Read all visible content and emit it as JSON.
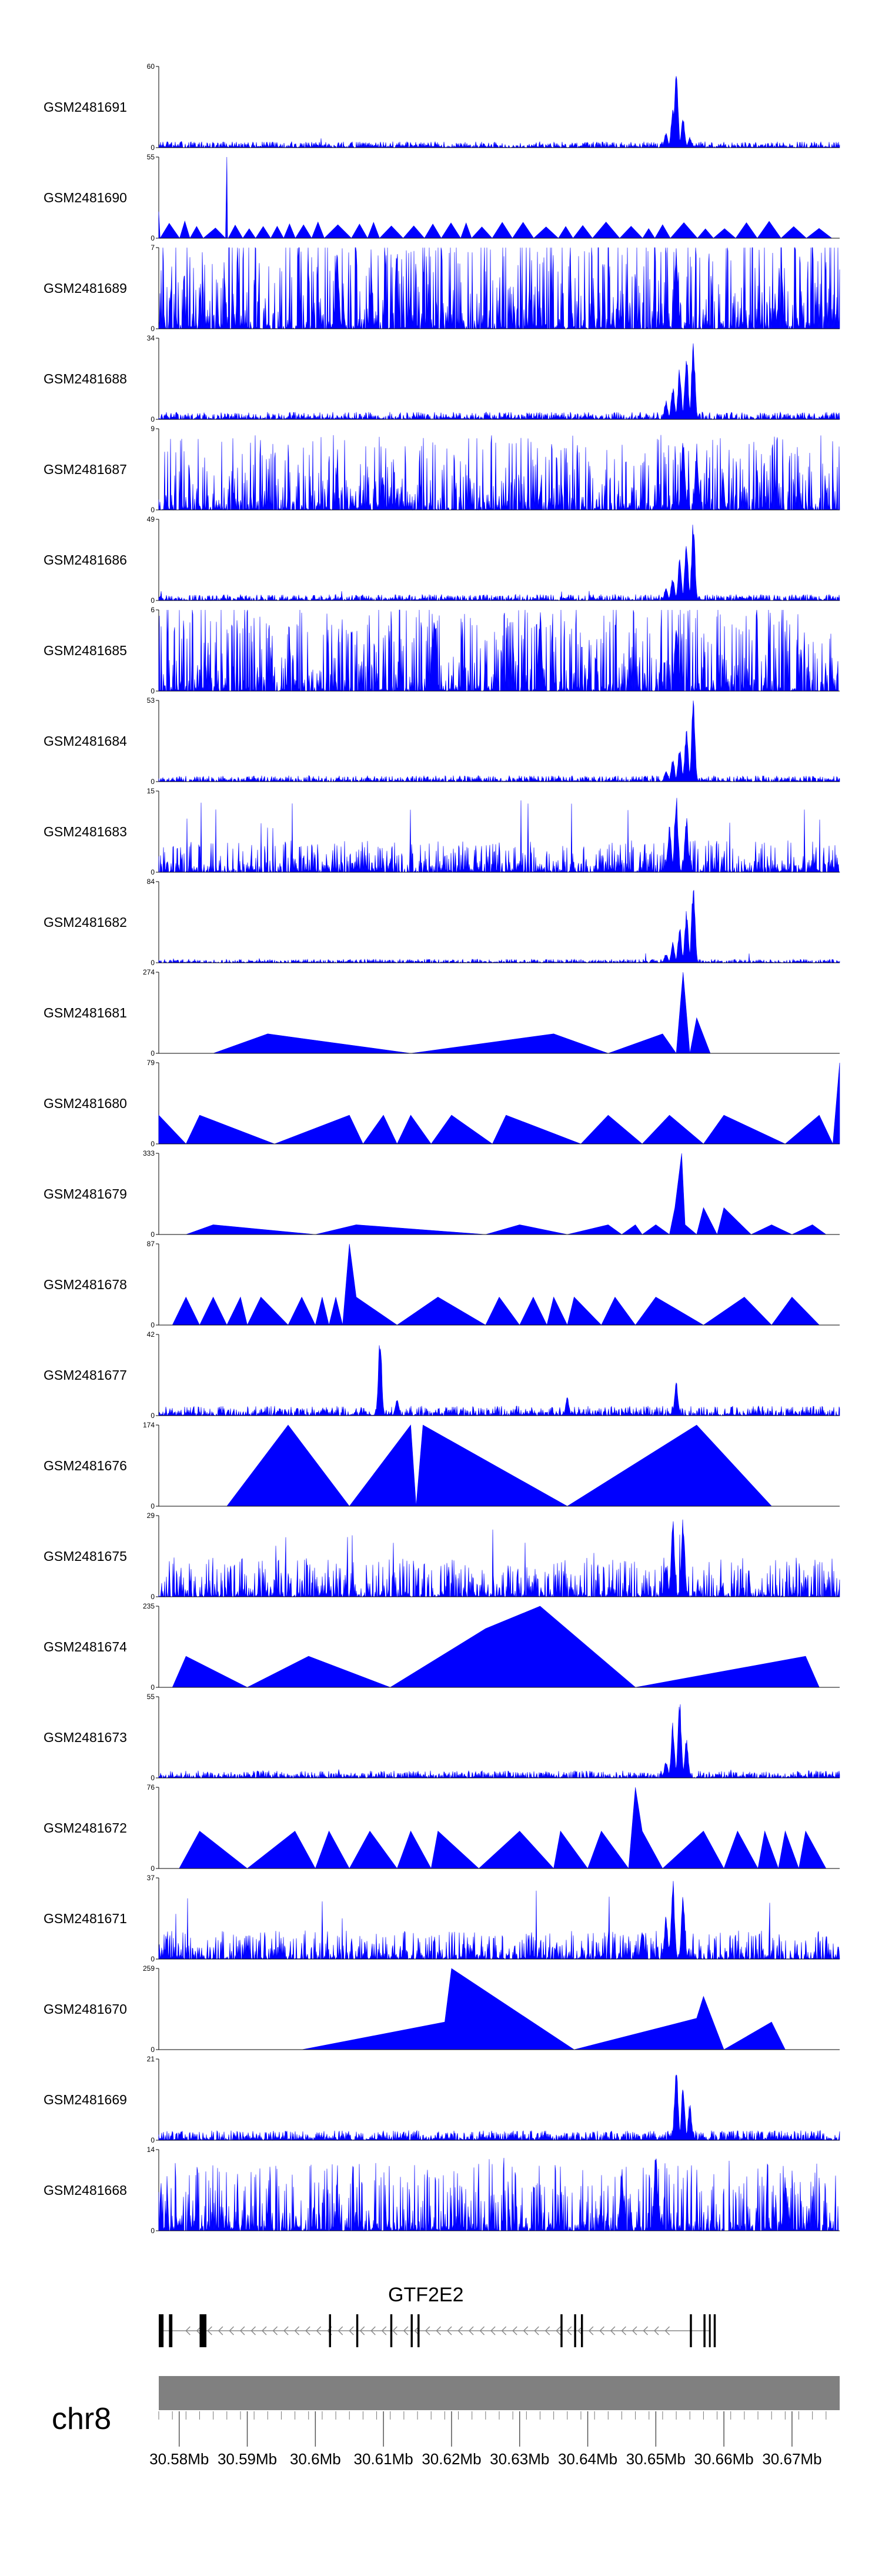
{
  "chart_data": {
    "type": "area",
    "genome": {
      "chromosome": "chr8",
      "gene": "GTF2E2",
      "x_range": [
        30.577,
        30.677
      ],
      "x_ticks": [
        30.58,
        30.59,
        30.6,
        30.61,
        30.62,
        30.63,
        30.64,
        30.65,
        30.66,
        30.67
      ],
      "x_tick_labels": [
        "30.58Mb",
        "30.59Mb",
        "30.6Mb",
        "30.61Mb",
        "30.62Mb",
        "30.63Mb",
        "30.64Mb",
        "30.65Mb",
        "30.66Mb",
        "30.67Mb"
      ]
    },
    "color": "#0000ff",
    "tracks": [
      {
        "name": "GSM2481691",
        "ymax": 60,
        "style": "dense",
        "noise": 0.05,
        "peaks": [
          [
            30.653,
            60
          ],
          [
            30.6525,
            32
          ],
          [
            30.654,
            22
          ],
          [
            30.6515,
            12
          ],
          [
            30.655,
            8
          ]
        ]
      },
      {
        "name": "GSM2481690",
        "ymax": 55,
        "style": "tri",
        "seg_min": 0.0015,
        "seg_max": 0.004,
        "level": 9,
        "peaks": [
          [
            30.577,
            18
          ],
          [
            30.587,
            55
          ]
        ]
      },
      {
        "name": "GSM2481689",
        "ymax": 7,
        "style": "spiky",
        "noise": 0.55,
        "peaks": [
          [
            30.6032,
            7
          ],
          [
            30.653,
            7
          ]
        ]
      },
      {
        "name": "GSM2481688",
        "ymax": 34,
        "style": "dense",
        "noise": 0.06,
        "peaks": [
          [
            30.6555,
            34
          ],
          [
            30.6545,
            28
          ],
          [
            30.6535,
            22
          ],
          [
            30.6525,
            14
          ],
          [
            30.6515,
            8
          ]
        ]
      },
      {
        "name": "GSM2481687",
        "ymax": 9,
        "style": "spiky",
        "noise": 0.42,
        "peaks": [
          [
            30.654,
            9
          ],
          [
            30.656,
            7
          ]
        ]
      },
      {
        "name": "GSM2481686",
        "ymax": 49,
        "style": "dense",
        "noise": 0.05,
        "peaks": [
          [
            30.6555,
            49
          ],
          [
            30.6545,
            35
          ],
          [
            30.6535,
            25
          ],
          [
            30.6525,
            15
          ],
          [
            30.6515,
            8
          ]
        ]
      },
      {
        "name": "GSM2481685",
        "ymax": 6,
        "style": "spiky",
        "noise": 0.5,
        "peaks": [
          [
            30.6175,
            6
          ],
          [
            30.633,
            6
          ],
          [
            30.653,
            5
          ]
        ]
      },
      {
        "name": "GSM2481684",
        "ymax": 53,
        "style": "dense",
        "noise": 0.05,
        "peaks": [
          [
            30.6555,
            53
          ],
          [
            30.6545,
            35
          ],
          [
            30.6535,
            24
          ],
          [
            30.6525,
            16
          ],
          [
            30.6515,
            8
          ]
        ]
      },
      {
        "name": "GSM2481683",
        "ymax": 15,
        "style": "spiky",
        "noise": 0.18,
        "peaks": [
          [
            30.653,
            15
          ],
          [
            30.6545,
            11
          ],
          [
            30.652,
            9
          ]
        ]
      },
      {
        "name": "GSM2481682",
        "ymax": 84,
        "style": "dense",
        "noise": 0.03,
        "peaks": [
          [
            30.6555,
            84
          ],
          [
            30.6545,
            55
          ],
          [
            30.6535,
            38
          ],
          [
            30.6525,
            22
          ],
          [
            30.6515,
            10
          ]
        ]
      },
      {
        "name": "GSM2481681",
        "ymax": 274,
        "style": "poly",
        "points": [
          [
            30.585,
            0
          ],
          [
            30.593,
            66
          ],
          [
            30.614,
            0
          ],
          [
            30.635,
            66
          ],
          [
            30.643,
            0
          ],
          [
            30.651,
            66
          ],
          [
            30.653,
            0
          ],
          [
            30.654,
            274
          ],
          [
            30.655,
            0
          ],
          [
            30.656,
            120
          ],
          [
            30.658,
            0
          ],
          [
            30.667,
            0
          ]
        ]
      },
      {
        "name": "GSM2481680",
        "ymax": 79,
        "style": "poly",
        "points": [
          [
            30.577,
            0
          ],
          [
            30.577,
            28
          ],
          [
            30.581,
            0
          ],
          [
            30.583,
            28
          ],
          [
            30.594,
            0
          ],
          [
            30.605,
            28
          ],
          [
            30.607,
            0
          ],
          [
            30.61,
            28
          ],
          [
            30.612,
            0
          ],
          [
            30.614,
            28
          ],
          [
            30.617,
            0
          ],
          [
            30.62,
            28
          ],
          [
            30.626,
            0
          ],
          [
            30.628,
            28
          ],
          [
            30.639,
            0
          ],
          [
            30.643,
            28
          ],
          [
            30.648,
            0
          ],
          [
            30.652,
            28
          ],
          [
            30.657,
            0
          ],
          [
            30.66,
            28
          ],
          [
            30.669,
            0
          ],
          [
            30.674,
            28
          ],
          [
            30.676,
            0
          ],
          [
            30.677,
            79
          ],
          [
            30.677,
            0
          ]
        ]
      },
      {
        "name": "GSM2481679",
        "ymax": 333,
        "style": "poly",
        "points": [
          [
            30.581,
            0
          ],
          [
            30.585,
            40
          ],
          [
            30.6,
            0
          ],
          [
            30.606,
            40
          ],
          [
            30.625,
            0
          ],
          [
            30.63,
            40
          ],
          [
            30.637,
            0
          ],
          [
            30.643,
            40
          ],
          [
            30.645,
            0
          ],
          [
            30.647,
            40
          ],
          [
            30.648,
            0
          ],
          [
            30.65,
            40
          ],
          [
            30.652,
            0
          ],
          [
            30.6528,
            110
          ],
          [
            30.6538,
            333
          ],
          [
            30.6543,
            40
          ],
          [
            30.656,
            0
          ],
          [
            30.657,
            110
          ],
          [
            30.659,
            0
          ],
          [
            30.66,
            110
          ],
          [
            30.664,
            0
          ],
          [
            30.667,
            40
          ],
          [
            30.67,
            0
          ],
          [
            30.673,
            40
          ],
          [
            30.675,
            0
          ]
        ]
      },
      {
        "name": "GSM2481678",
        "ymax": 87,
        "style": "poly",
        "points": [
          [
            30.579,
            0
          ],
          [
            30.581,
            30
          ],
          [
            30.583,
            0
          ],
          [
            30.585,
            30
          ],
          [
            30.587,
            0
          ],
          [
            30.589,
            30
          ],
          [
            30.59,
            0
          ],
          [
            30.592,
            30
          ],
          [
            30.596,
            0
          ],
          [
            30.598,
            30
          ],
          [
            30.6,
            0
          ],
          [
            30.601,
            30
          ],
          [
            30.602,
            0
          ],
          [
            30.603,
            30
          ],
          [
            30.604,
            0
          ],
          [
            30.605,
            87
          ],
          [
            30.606,
            30
          ],
          [
            30.612,
            0
          ],
          [
            30.618,
            30
          ],
          [
            30.625,
            0
          ],
          [
            30.627,
            30
          ],
          [
            30.63,
            0
          ],
          [
            30.632,
            30
          ],
          [
            30.634,
            0
          ],
          [
            30.635,
            30
          ],
          [
            30.637,
            0
          ],
          [
            30.638,
            30
          ],
          [
            30.642,
            0
          ],
          [
            30.644,
            30
          ],
          [
            30.647,
            0
          ],
          [
            30.65,
            30
          ],
          [
            30.657,
            0
          ],
          [
            30.663,
            30
          ],
          [
            30.667,
            0
          ],
          [
            30.67,
            30
          ],
          [
            30.674,
            0
          ]
        ]
      },
      {
        "name": "GSM2481677",
        "ymax": 42,
        "style": "dense",
        "noise": 0.08,
        "peaks": [
          [
            30.6095,
            42
          ],
          [
            30.612,
            10
          ],
          [
            30.637,
            10
          ],
          [
            30.653,
            18
          ]
        ]
      },
      {
        "name": "GSM2481676",
        "ymax": 174,
        "style": "poly",
        "points": [
          [
            30.587,
            0
          ],
          [
            30.596,
            174
          ],
          [
            30.605,
            0
          ],
          [
            30.614,
            174
          ],
          [
            30.6148,
            0
          ],
          [
            30.6158,
            174
          ],
          [
            30.637,
            0
          ],
          [
            30.656,
            174
          ],
          [
            30.667,
            0
          ]
        ]
      },
      {
        "name": "GSM2481675",
        "ymax": 29,
        "style": "spiky",
        "noise": 0.22,
        "peaks": [
          [
            30.6525,
            29
          ],
          [
            30.654,
            29
          ],
          [
            30.6515,
            12
          ]
        ]
      },
      {
        "name": "GSM2481674",
        "ymax": 235,
        "style": "poly",
        "points": [
          [
            30.579,
            0
          ],
          [
            30.581,
            90
          ],
          [
            30.59,
            0
          ],
          [
            30.599,
            90
          ],
          [
            30.611,
            0
          ],
          [
            30.625,
            170
          ],
          [
            30.633,
            235
          ],
          [
            30.647,
            0
          ],
          [
            30.672,
            90
          ],
          [
            30.674,
            0
          ]
        ]
      },
      {
        "name": "GSM2481673",
        "ymax": 55,
        "style": "dense",
        "noise": 0.06,
        "peaks": [
          [
            30.6535,
            55
          ],
          [
            30.6525,
            38
          ],
          [
            30.6545,
            28
          ],
          [
            30.6515,
            12
          ]
        ]
      },
      {
        "name": "GSM2481672",
        "ymax": 76,
        "style": "poly",
        "points": [
          [
            30.58,
            0
          ],
          [
            30.583,
            35
          ],
          [
            30.59,
            0
          ],
          [
            30.597,
            35
          ],
          [
            30.6,
            0
          ],
          [
            30.602,
            35
          ],
          [
            30.605,
            0
          ],
          [
            30.608,
            35
          ],
          [
            30.612,
            0
          ],
          [
            30.614,
            35
          ],
          [
            30.617,
            0
          ],
          [
            30.618,
            35
          ],
          [
            30.624,
            0
          ],
          [
            30.63,
            35
          ],
          [
            30.635,
            0
          ],
          [
            30.636,
            35
          ],
          [
            30.64,
            0
          ],
          [
            30.642,
            35
          ],
          [
            30.646,
            0
          ],
          [
            30.647,
            76
          ],
          [
            30.648,
            35
          ],
          [
            30.651,
            0
          ],
          [
            30.657,
            35
          ],
          [
            30.66,
            0
          ],
          [
            30.662,
            35
          ],
          [
            30.665,
            0
          ],
          [
            30.666,
            35
          ],
          [
            30.668,
            0
          ],
          [
            30.669,
            35
          ],
          [
            30.671,
            0
          ],
          [
            30.672,
            35
          ],
          [
            30.675,
            0
          ]
        ]
      },
      {
        "name": "GSM2481671",
        "ymax": 37,
        "style": "spiky",
        "noise": 0.16,
        "peaks": [
          [
            30.6525,
            37
          ],
          [
            30.654,
            30
          ],
          [
            30.6515,
            20
          ],
          [
            30.648,
            14
          ]
        ]
      },
      {
        "name": "GSM2481670",
        "ymax": 259,
        "style": "poly",
        "points": [
          [
            30.598,
            0
          ],
          [
            30.619,
            88
          ],
          [
            30.62,
            259
          ],
          [
            30.638,
            0
          ],
          [
            30.656,
            100
          ],
          [
            30.657,
            170
          ],
          [
            30.66,
            0
          ],
          [
            30.667,
            88
          ],
          [
            30.669,
            0
          ]
        ]
      },
      {
        "name": "GSM2481669",
        "ymax": 21,
        "style": "dense",
        "noise": 0.08,
        "peaks": [
          [
            30.653,
            21
          ],
          [
            30.654,
            14
          ],
          [
            30.655,
            10
          ]
        ]
      },
      {
        "name": "GSM2481668",
        "ymax": 14,
        "style": "spiky",
        "noise": 0.38,
        "peaks": [
          [
            30.65,
            14
          ],
          [
            30.645,
            11
          ],
          [
            30.669,
            10
          ]
        ]
      }
    ],
    "gene_track": {
      "strand": "-",
      "line_range": [
        30.577,
        30.658
      ],
      "arrow_range": [
        30.581,
        30.652
      ],
      "exons": [
        [
          30.577,
          30.5777
        ],
        [
          30.5785,
          30.579
        ],
        [
          30.583,
          30.584
        ],
        [
          30.602,
          30.6023
        ],
        [
          30.606,
          30.6063
        ],
        [
          30.611,
          30.6113
        ],
        [
          30.614,
          30.6143
        ],
        [
          30.615,
          30.6153
        ],
        [
          30.636,
          30.6363
        ],
        [
          30.638,
          30.6383
        ],
        [
          30.639,
          30.6393
        ],
        [
          30.655,
          30.6553
        ],
        [
          30.657,
          30.6573
        ],
        [
          30.6578,
          30.658
        ],
        [
          30.6585,
          30.6588
        ]
      ]
    }
  }
}
